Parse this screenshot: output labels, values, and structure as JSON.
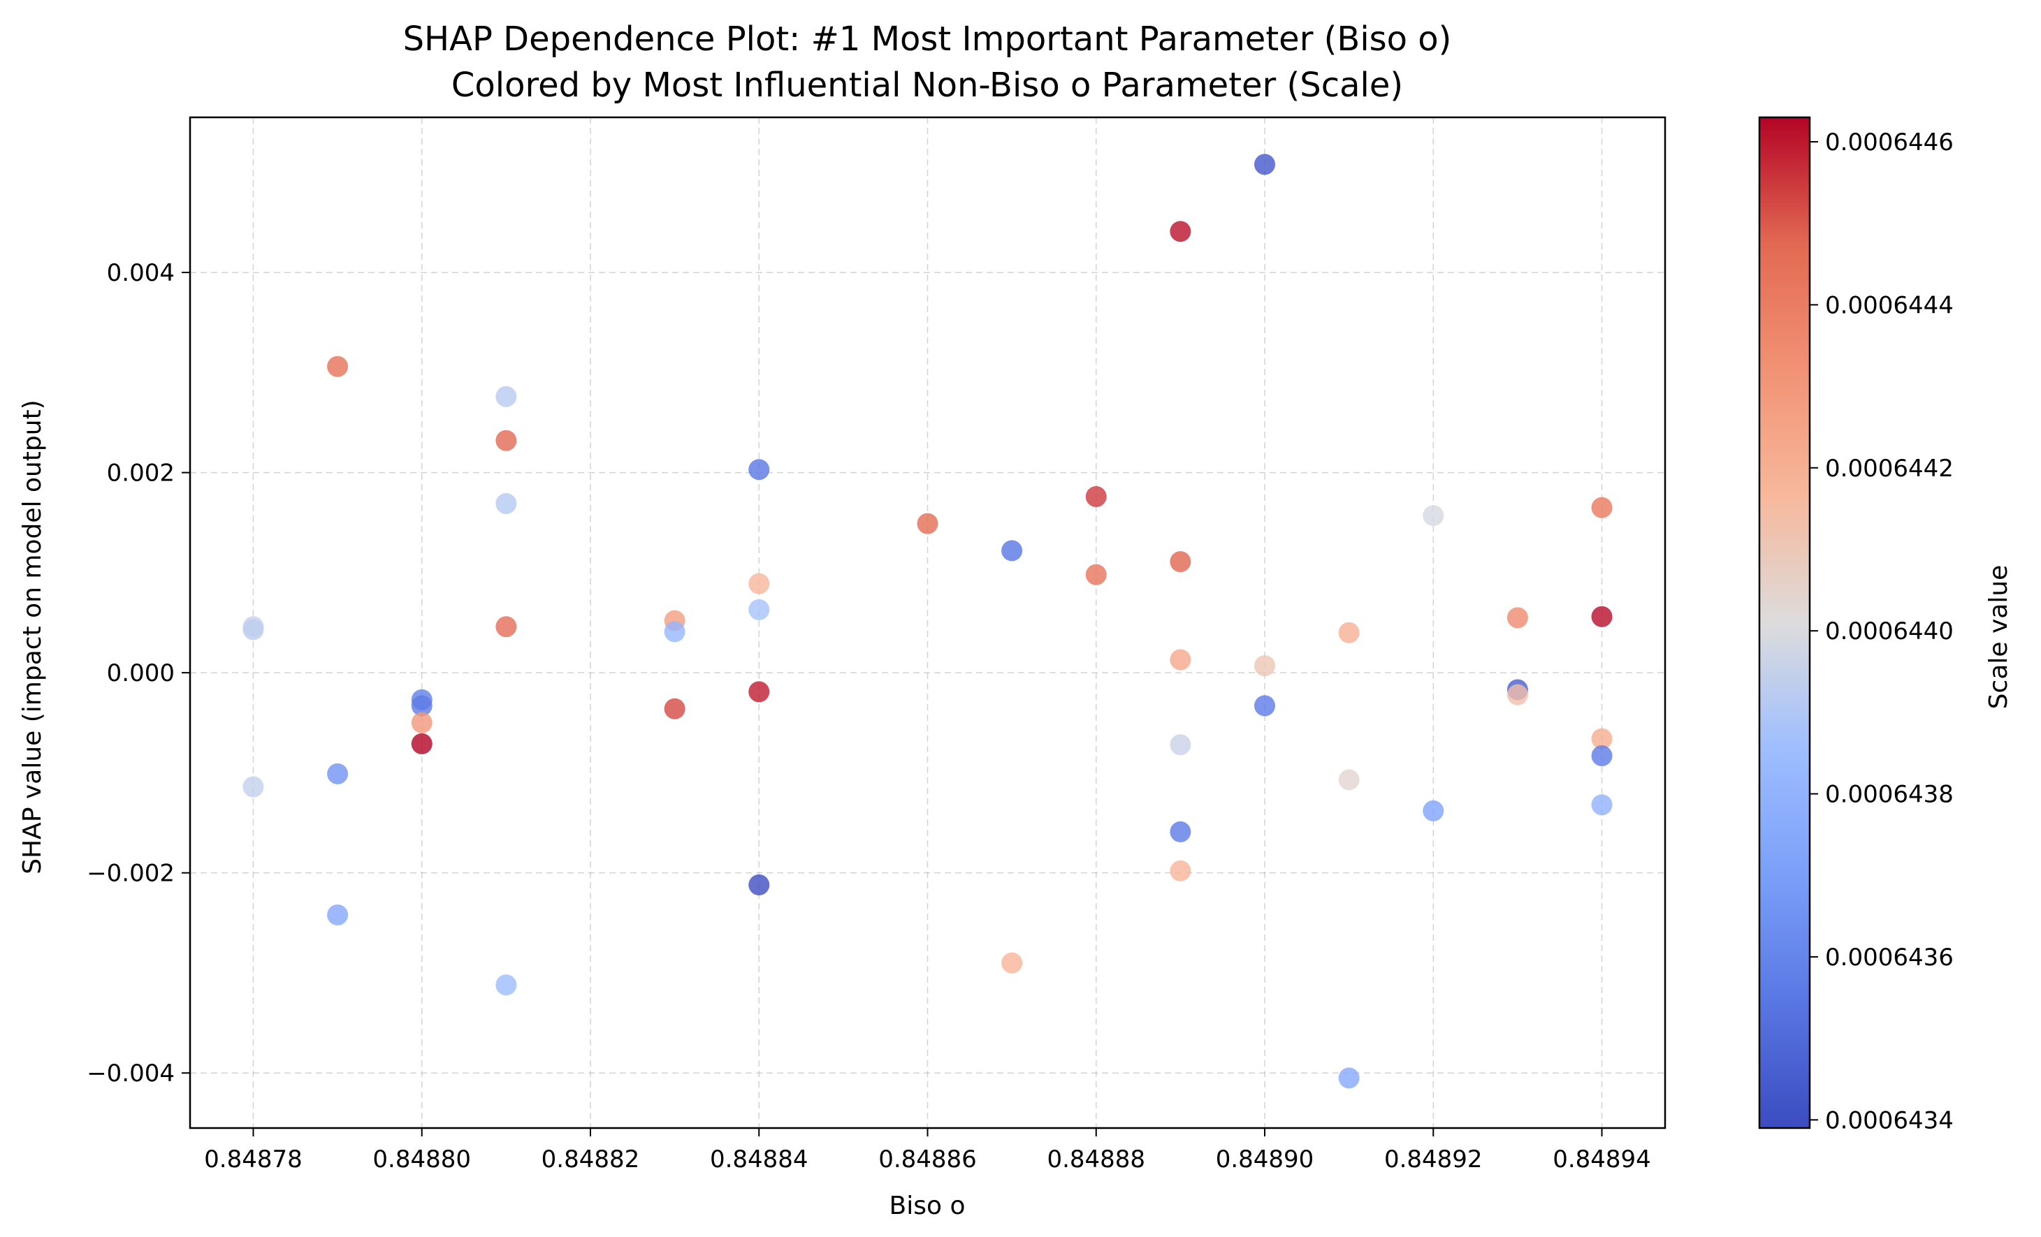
{
  "chart_data": {
    "type": "scatter",
    "title": "SHAP Dependence Plot: #1 Most Important Parameter (Biso o)",
    "subtitle": "Colored by Most Influential Non-Biso o Parameter (Scale)",
    "xlabel": "Biso o",
    "ylabel": "SHAP value (impact on model output)",
    "xlim": [
      0.8487725,
      0.8489475
    ],
    "ylim": [
      -0.00455,
      0.00555
    ],
    "x_ticks": [
      0.84878,
      0.8488,
      0.84882,
      0.84884,
      0.84886,
      0.84888,
      0.8489,
      0.84892,
      0.84894
    ],
    "x_tick_labels": [
      "0.84878",
      "0.84880",
      "0.84882",
      "0.84884",
      "0.84886",
      "0.84888",
      "0.84890",
      "0.84892",
      "0.84894"
    ],
    "y_ticks": [
      0.004,
      0.002,
      0.0,
      -0.002,
      -0.004
    ],
    "y_tick_labels": [
      "0.004",
      "0.002",
      "0.000",
      "−0.002",
      "−0.004"
    ],
    "grid": true,
    "colormap": "coolwarm",
    "colorbar": {
      "label": "Scale value",
      "range": [
        0.00064339,
        0.00064463
      ],
      "ticks": [
        0.0006446,
        0.0006444,
        0.0006442,
        0.000644,
        0.0006438,
        0.0006436,
        0.0006434
      ],
      "tick_labels": [
        "0.0006446",
        "0.0006444",
        "0.0006442",
        "0.0006440",
        "0.0006438",
        "0.0006436",
        "0.0006434"
      ]
    },
    "points": [
      {
        "x": 0.84878,
        "y": 0.00046,
        "c": 0.000643955
      },
      {
        "x": 0.84878,
        "y": 0.00043,
        "c": 0.00064393
      },
      {
        "x": 0.84878,
        "y": -0.00114,
        "c": 0.000643945
      },
      {
        "x": 0.84879,
        "y": 0.00306,
        "c": 0.00064445
      },
      {
        "x": 0.84879,
        "y": -0.00101,
        "c": 0.00064365
      },
      {
        "x": 0.84879,
        "y": -0.00242,
        "c": 0.000643745
      },
      {
        "x": 0.8488,
        "y": -0.00027,
        "c": 0.00064358
      },
      {
        "x": 0.8488,
        "y": -0.00033,
        "c": 0.00064356
      },
      {
        "x": 0.8488,
        "y": -0.0005,
        "c": 0.0006443
      },
      {
        "x": 0.8488,
        "y": -0.00071,
        "c": 0.00064463
      },
      {
        "x": 0.84881,
        "y": 0.00276,
        "c": 0.00064392
      },
      {
        "x": 0.84881,
        "y": 0.00232,
        "c": 0.000644475
      },
      {
        "x": 0.84881,
        "y": 0.00169,
        "c": 0.00064391
      },
      {
        "x": 0.84881,
        "y": 0.00046,
        "c": 0.000644455
      },
      {
        "x": 0.84881,
        "y": -0.00312,
        "c": 0.000643845
      },
      {
        "x": 0.84883,
        "y": 0.00052,
        "c": 0.000644275
      },
      {
        "x": 0.84883,
        "y": 0.00041,
        "c": 0.00064382
      },
      {
        "x": 0.84883,
        "y": -0.00036,
        "c": 0.000644525
      },
      {
        "x": 0.84884,
        "y": 0.00203,
        "c": 0.000643545
      },
      {
        "x": 0.84884,
        "y": 0.00089,
        "c": 0.00064417
      },
      {
        "x": 0.84884,
        "y": 0.00063,
        "c": 0.000643875
      },
      {
        "x": 0.84884,
        "y": -0.00019,
        "c": 0.000644595
      },
      {
        "x": 0.84884,
        "y": -0.00212,
        "c": 0.0006434
      },
      {
        "x": 0.84886,
        "y": 0.00149,
        "c": 0.00064446
      },
      {
        "x": 0.84887,
        "y": 0.00122,
        "c": 0.00064354
      },
      {
        "x": 0.84887,
        "y": -0.0029,
        "c": 0.00064418
      },
      {
        "x": 0.84888,
        "y": 0.00176,
        "c": 0.000644545
      },
      {
        "x": 0.84888,
        "y": 0.00098,
        "c": 0.000644435
      },
      {
        "x": 0.84889,
        "y": 0.00441,
        "c": 0.00064461
      },
      {
        "x": 0.84889,
        "y": 0.00111,
        "c": 0.00064448
      },
      {
        "x": 0.84889,
        "y": 0.00013,
        "c": 0.00064423
      },
      {
        "x": 0.84889,
        "y": -0.00072,
        "c": 0.00064396
      },
      {
        "x": 0.84889,
        "y": -0.00159,
        "c": 0.000643565
      },
      {
        "x": 0.84889,
        "y": -0.00198,
        "c": 0.00064418
      },
      {
        "x": 0.8489,
        "y": 0.00508,
        "c": 0.000643435
      },
      {
        "x": 0.8489,
        "y": 7e-05,
        "c": 0.0006441
      },
      {
        "x": 0.8489,
        "y": -0.00033,
        "c": 0.00064356
      },
      {
        "x": 0.84891,
        "y": 0.0004,
        "c": 0.0006442
      },
      {
        "x": 0.84891,
        "y": -0.00107,
        "c": 0.00064404
      },
      {
        "x": 0.84891,
        "y": -0.00405,
        "c": 0.00064375
      },
      {
        "x": 0.84892,
        "y": 0.00157,
        "c": 0.00064399
      },
      {
        "x": 0.84892,
        "y": -0.00138,
        "c": 0.00064372
      },
      {
        "x": 0.84893,
        "y": 0.00055,
        "c": 0.000644345
      },
      {
        "x": 0.84893,
        "y": -0.00017,
        "c": 0.000643455
      },
      {
        "x": 0.84893,
        "y": -0.00022,
        "c": 0.000644135
      },
      {
        "x": 0.84894,
        "y": 0.00165,
        "c": 0.00064442
      },
      {
        "x": 0.84894,
        "y": 0.00056,
        "c": 0.000644615
      },
      {
        "x": 0.84894,
        "y": -0.00066,
        "c": 0.000644215
      },
      {
        "x": 0.84894,
        "y": -0.00083,
        "c": 0.000643565
      },
      {
        "x": 0.84894,
        "y": -0.00132,
        "c": 0.000643795
      }
    ]
  }
}
